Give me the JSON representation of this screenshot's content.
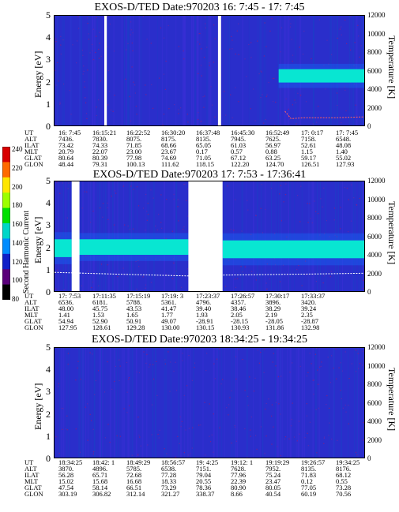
{
  "colorbar": {
    "title": "Second Harmonic Current",
    "labels": [
      "240",
      "220",
      "200",
      "180",
      "160",
      "140",
      "120",
      "100",
      "80"
    ],
    "colors": [
      "#d80000",
      "#ff6a00",
      "#ffe600",
      "#9cff00",
      "#00e000",
      "#00d6c8",
      "#008cff",
      "#1020c8",
      "#5a007a",
      "#000000"
    ]
  },
  "row_labels": [
    "UT",
    "ALT",
    "ILAT",
    "MLT",
    "GLAT",
    "GLON"
  ],
  "chart_data": [
    {
      "type": "heatmap",
      "title": "EXOS-D/TED   Date:970203  16: 7:45 - 17: 7:45",
      "ylabel": "Energy [eV]",
      "y2label": "Temperature [K]",
      "ylim": [
        0,
        5
      ],
      "y2lim": [
        0,
        12000
      ],
      "yticks": [
        "5",
        "4",
        "3",
        "2",
        "1",
        "0"
      ],
      "y2ticks": [
        "12000",
        "10000",
        "8000",
        "6000",
        "4000",
        "2000",
        "0"
      ],
      "gaps": [
        [
          0.16,
          0.168
        ],
        [
          0.525,
          0.535
        ]
      ],
      "bands": [
        {
          "x0": 0.72,
          "x1": 1.0,
          "y": 2.3,
          "h": 0.6,
          "color": "#08e6d2"
        }
      ],
      "temperature_curve": {
        "color": "#ff6060",
        "points": [
          [
            0.74,
            1700
          ],
          [
            0.76,
            900
          ],
          [
            0.8,
            1000
          ],
          [
            0.9,
            1000
          ],
          [
            1.0,
            1100
          ]
        ]
      },
      "table": {
        "UT": [
          "16: 7:45",
          "16:15:21",
          "16:22:52",
          "16:30:20",
          "16:37:48",
          "16:45:30",
          "16:52:49",
          "17: 0:17",
          "17: 7:45"
        ],
        "ALT": [
          "7436.",
          "7830.",
          "8075.",
          "8175.",
          "8135.",
          "7945.",
          "7625.",
          "7158.",
          "6548."
        ],
        "ILAT": [
          "73.42",
          "74.33",
          "71.85",
          "68.66",
          "65.05",
          "61.03",
          "56.97",
          "52.61",
          "48.08"
        ],
        "MLT": [
          "20.79",
          "22.07",
          "23.00",
          "23.67",
          "0.17",
          "0.57",
          "0.88",
          "1.15",
          "1.40"
        ],
        "GLAT": [
          "80.64",
          "80.39",
          "77.98",
          "74.69",
          "71.05",
          "67.12",
          "63.25",
          "59.17",
          "55.02"
        ],
        "GLON": [
          "48.44",
          "79.31",
          "100.13",
          "111.62",
          "118.15",
          "122.20",
          "124.70",
          "126.51",
          "127.93"
        ]
      }
    },
    {
      "type": "heatmap",
      "title": "EXOS-D/TED   Date:970203  17: 7:53 - 17:36:41",
      "ylabel": "Energy [eV]",
      "y2label": "Temperature [K]",
      "ylim": [
        0,
        5
      ],
      "y2lim": [
        0,
        12000
      ],
      "yticks": [
        "5",
        "4",
        "3",
        "2",
        "1",
        "0"
      ],
      "y2ticks": [
        "12000",
        "10000",
        "8000",
        "6000",
        "4000",
        "2000",
        "0"
      ],
      "gaps": [
        [
          0.055,
          0.08
        ],
        [
          0.43,
          0.54
        ]
      ],
      "bands": [
        {
          "x0": 0.0,
          "x1": 0.055,
          "y": 2.0,
          "h": 0.8,
          "color": "#08e6d2"
        },
        {
          "x0": 0.08,
          "x1": 0.43,
          "y": 2.05,
          "h": 0.7,
          "color": "#08e6d2"
        },
        {
          "x0": 0.54,
          "x1": 1.0,
          "y": 1.95,
          "h": 0.8,
          "color": "#08e6d2"
        }
      ],
      "temperature_curve": {
        "color": "#ffffff",
        "points": [
          [
            0.0,
            2200
          ],
          [
            0.2,
            2000
          ],
          [
            0.43,
            1800
          ],
          [
            0.54,
            1900
          ],
          [
            0.8,
            2000
          ],
          [
            1.0,
            2100
          ]
        ]
      },
      "table": {
        "UT": [
          "17: 7:53",
          "17:11:35",
          "17:15:19",
          "17:19: 3",
          "17:23:37",
          "17:26:57",
          "17:30:17",
          "17:33:37"
        ],
        "ALT": [
          "6536.",
          "6181.",
          "5788.",
          "5361.",
          "4796.",
          "4357.",
          "3896.",
          "3420."
        ],
        "ILAT": [
          "48.00",
          "45.75",
          "43.53",
          "41.47",
          "39.40",
          "38.46",
          "38.29",
          "39.24"
        ],
        "MLT": [
          "1.41",
          "1.53",
          "1.65",
          "1.77",
          "1.93",
          "2.05",
          "2.19",
          "2.35"
        ],
        "GLAT": [
          "54.94",
          "52.90",
          "50.91",
          "49.07",
          "-28.91",
          "-28.15",
          "-28.05",
          "-28.87"
        ],
        "GLON": [
          "127.95",
          "128.61",
          "129.28",
          "130.00",
          "130.15",
          "130.93",
          "131.86",
          "132.98"
        ]
      }
    },
    {
      "type": "heatmap",
      "title": "EXOS-D/TED   Date:970203  18:34:25 - 19:34:25",
      "ylabel": "Energy [eV]",
      "y2label": "Temperature [K]",
      "ylim": [
        0,
        5
      ],
      "y2lim": [
        0,
        12000
      ],
      "yticks": [
        "5",
        "4",
        "3",
        "2",
        "1",
        "0"
      ],
      "y2ticks": [
        "12000",
        "10000",
        "8000",
        "6000",
        "4000",
        "2000",
        "0"
      ],
      "gaps": [],
      "bands": [],
      "temperature_curve": null,
      "table": {
        "UT": [
          "18:34:25",
          "18:42: 1",
          "18:49:29",
          "18:56:57",
          "19: 4:25",
          "19:12: 1",
          "19:19:29",
          "19:26:57",
          "19:34:25"
        ],
        "ALT": [
          "3870.",
          "4896.",
          "5785.",
          "6538.",
          "7151.",
          "7628.",
          "7952.",
          "8135.",
          "8176."
        ],
        "ILAT": [
          "56.28",
          "65.71",
          "72.68",
          "77.28",
          "79.04",
          "77.96",
          "75.24",
          "71.83",
          "68.12"
        ],
        "MLT": [
          "15.02",
          "15.68",
          "16.68",
          "18.33",
          "20.55",
          "22.39",
          "23.47",
          "0.12",
          "0.55"
        ],
        "GLAT": [
          "47.54",
          "58.14",
          "66.51",
          "73.29",
          "78.36",
          "80.90",
          "80.05",
          "77.05",
          "73.28"
        ],
        "GLON": [
          "303.19",
          "306.82",
          "312.14",
          "321.27",
          "338.37",
          "8.66",
          "40.54",
          "60.19",
          "70.56"
        ]
      }
    }
  ]
}
